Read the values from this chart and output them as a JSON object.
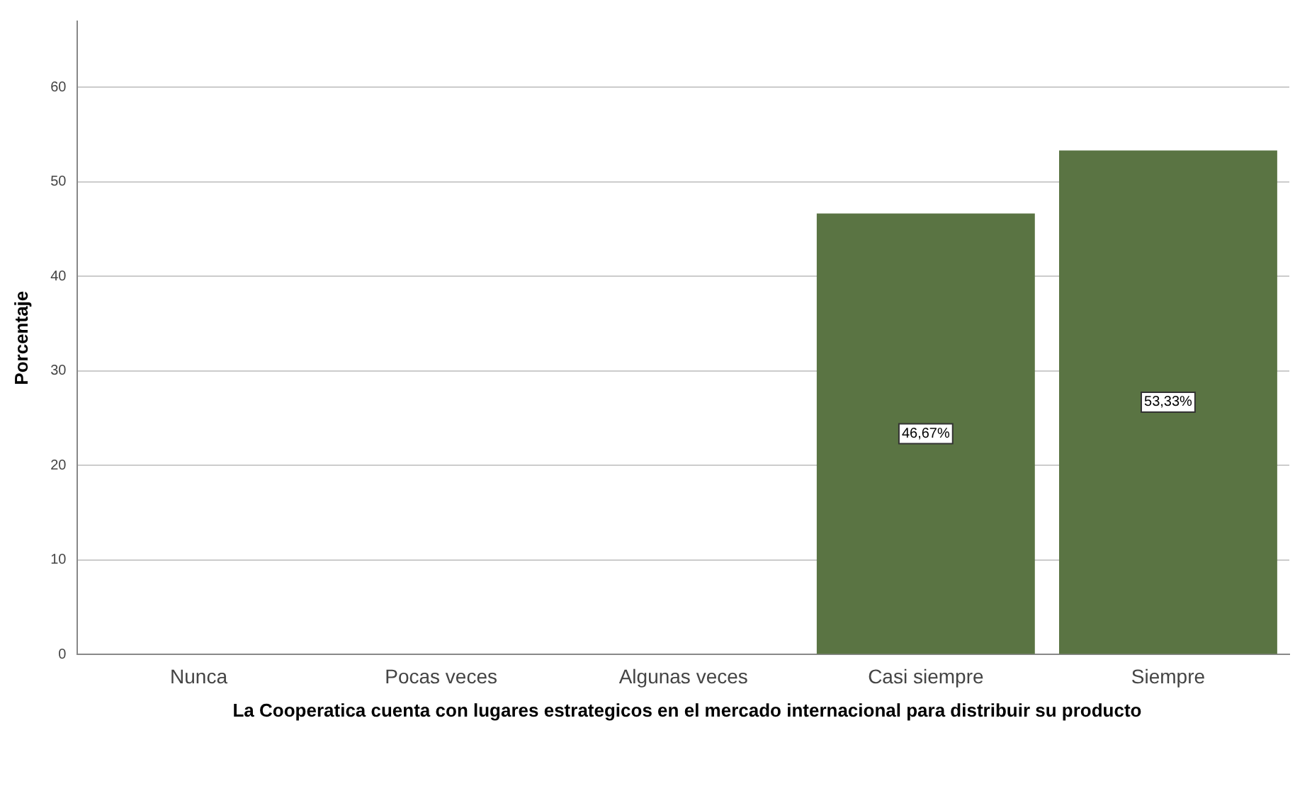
{
  "chart_data": {
    "type": "bar",
    "xlabel": "La Cooperatica cuenta con lugares estrategicos en el mercado internacional para distribuir su producto",
    "ylabel": "Porcentaje",
    "categories": [
      "Nunca",
      "Pocas veces",
      "Algunas veces",
      "Casi siempre",
      "Siempre"
    ],
    "values": [
      0,
      0,
      0,
      46.67,
      53.33
    ],
    "value_labels": [
      null,
      null,
      null,
      "46,67%",
      "53,33%"
    ],
    "color": "#5a7443",
    "ylim": [
      0,
      67
    ],
    "yticks": [
      0,
      10,
      20,
      30,
      40,
      50,
      60
    ],
    "grid": "y",
    "legend": false
  }
}
